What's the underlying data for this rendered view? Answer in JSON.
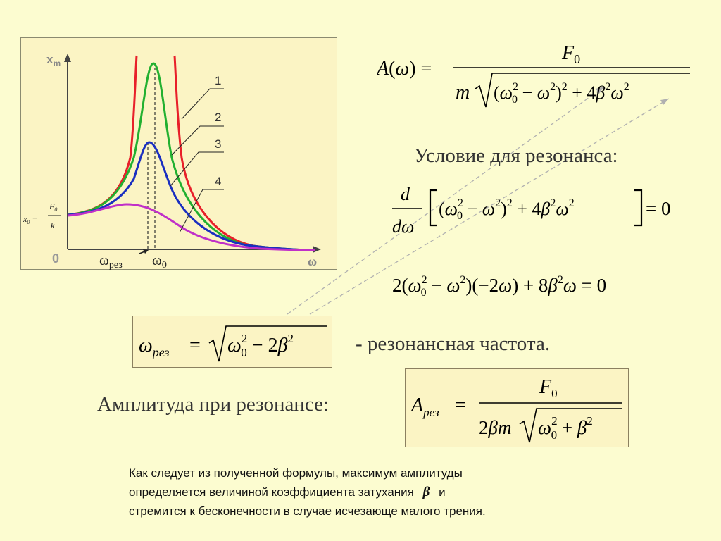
{
  "graph": {
    "y_axis_label": "x",
    "y_axis_sub": "m",
    "x_axis_label": "ω",
    "origin_label": "0",
    "zero_label": "0",
    "x0_label_lhs": "x",
    "x0_label_sub": "0",
    "x0_label_num": "F",
    "x0_label_num_sub": "0",
    "x0_label_den": "k",
    "omega_res": "ω",
    "omega_res_sub": "рез",
    "omega_0": "ω",
    "omega_0_sub": "0",
    "curve_labels": [
      "1",
      "2",
      "3",
      "4"
    ],
    "curve_colors": [
      "#e8202a",
      "#22b030",
      "#1a2fc0",
      "#c030c8"
    ]
  },
  "formula_A": {
    "lhs": "A(ω) =",
    "numerator": "F",
    "numerator_sub": "0",
    "den_m": "m",
    "den_body": "(ω",
    "den_rest": "− ω",
    "den_tail": ") + 4β ω"
  },
  "condition_heading": "Условие для резонанса:",
  "derivative_eq": {
    "d_num": "d",
    "d_den": "dω",
    "body": "(ω",
    "rest": "− ω",
    "tail": ") + 4β ω",
    "rhs": "= 0"
  },
  "second_eq": {
    "text_a": "2(ω",
    "text_b": "− ω",
    "text_c": ")(−2ω) + 8β ω = 0"
  },
  "omega_res_box": {
    "lhs": "ω",
    "lhs_sub": "рез",
    "eq": "=",
    "body": "ω",
    "rest": "− 2β"
  },
  "res_freq_label": "- резонансная частота.",
  "amp_label": "Амплитуда при резонансе:",
  "amp_box": {
    "lhs": "A",
    "lhs_sub": "рез",
    "eq": "=",
    "numerator": "F",
    "numerator_sub": "0",
    "den_pre": "2βm",
    "den_body": "ω",
    "den_rest": "+ β"
  },
  "note": {
    "line1": "Как следует из полученной формулы, максимум амплитуды",
    "line2a": "определяется величиной коэффициента затухания",
    "line2_beta": "β",
    "line2b": "и",
    "line3": "стремится к бесконечности в случае исчезающе малого трения."
  }
}
